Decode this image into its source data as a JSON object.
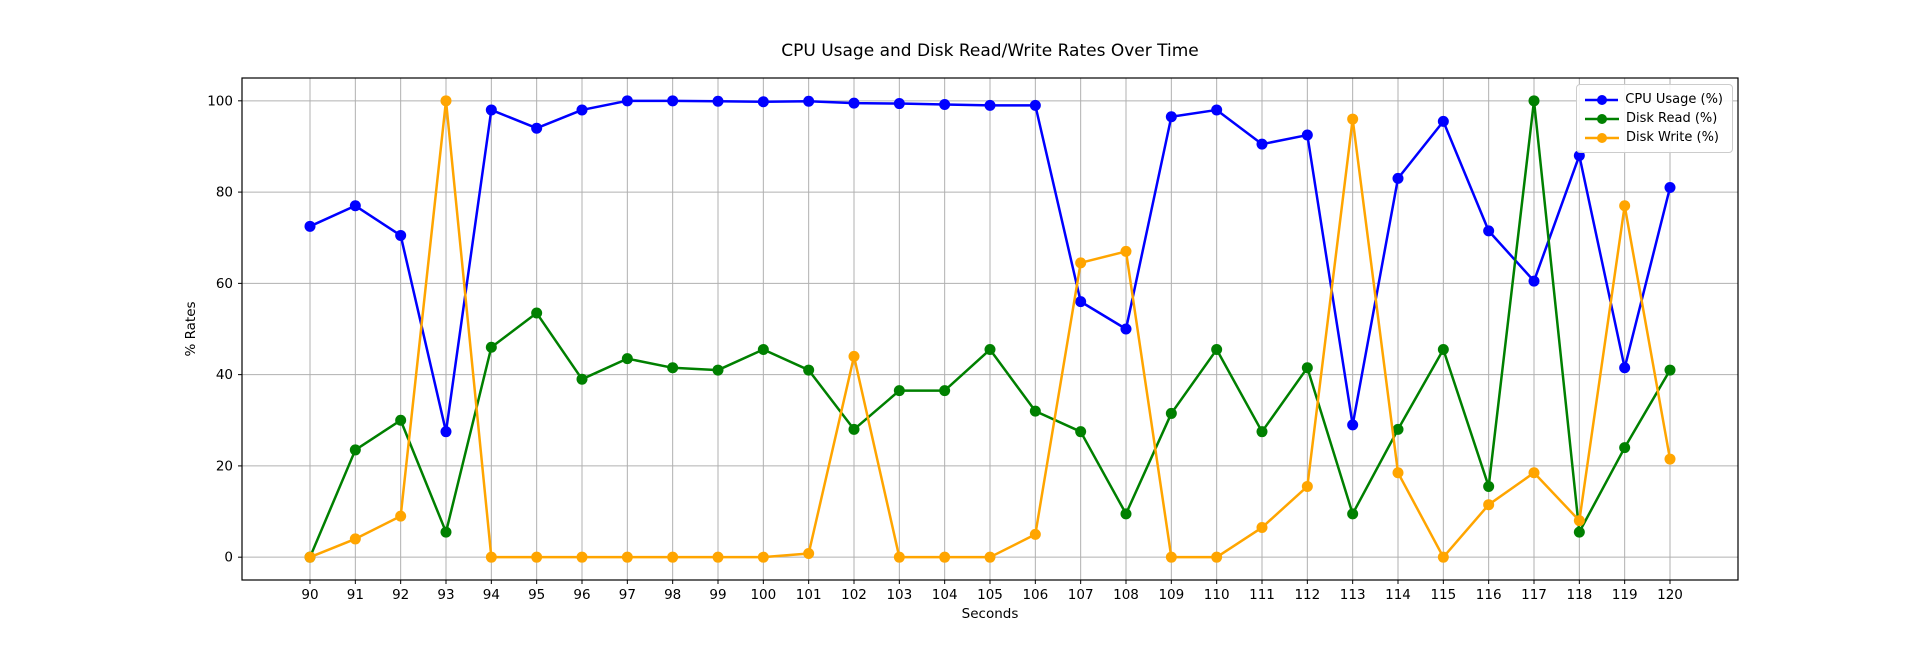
{
  "chart_data": {
    "type": "line",
    "title": "CPU Usage and Disk Read/Write Rates Over Time",
    "xlabel": "Seconds",
    "ylabel": "% Rates",
    "x": [
      90,
      91,
      92,
      93,
      94,
      95,
      96,
      97,
      98,
      99,
      100,
      101,
      102,
      103,
      104,
      105,
      106,
      107,
      108,
      109,
      110,
      111,
      112,
      113,
      114,
      115,
      116,
      117,
      118,
      119,
      120
    ],
    "series": [
      {
        "name": "CPU Usage (%)",
        "color": "#0000ff",
        "marker": "circle",
        "values": [
          72.5,
          77,
          70.5,
          27.5,
          98,
          94,
          98,
          100,
          100,
          99.9,
          99.8,
          99.9,
          99.5,
          99.4,
          99.2,
          99,
          99,
          56,
          50,
          96.5,
          98,
          90.5,
          92.5,
          29,
          83,
          95.5,
          71.5,
          60.5,
          88,
          41.5,
          81
        ]
      },
      {
        "name": "Disk Read (%)",
        "color": "#008000",
        "marker": "circle",
        "values": [
          0,
          23.5,
          30,
          5.5,
          46,
          53.5,
          39,
          43.5,
          41.5,
          41,
          45.5,
          41,
          28,
          36.5,
          36.5,
          45.5,
          32,
          27.5,
          9.5,
          31.5,
          45.5,
          27.5,
          41.5,
          9.5,
          28,
          45.5,
          15.5,
          100,
          5.5,
          24,
          41
        ]
      },
      {
        "name": "Disk Write (%)",
        "color": "#ffa500",
        "marker": "circle",
        "values": [
          0,
          4,
          9,
          100,
          0,
          0,
          0,
          0,
          0,
          0,
          0,
          0.8,
          44,
          0,
          0,
          0,
          5,
          64.5,
          67,
          0,
          0,
          6.5,
          15.5,
          96,
          18.5,
          0,
          11.5,
          18.5,
          8,
          77,
          21.5
        ]
      }
    ],
    "xticks": [
      90,
      91,
      92,
      93,
      94,
      95,
      96,
      97,
      98,
      99,
      100,
      101,
      102,
      103,
      104,
      105,
      106,
      107,
      108,
      109,
      110,
      111,
      112,
      113,
      114,
      115,
      116,
      117,
      118,
      119,
      120
    ],
    "yticks": [
      0,
      20,
      40,
      60,
      80,
      100
    ],
    "xlim": [
      88.5,
      121.5
    ],
    "ylim": [
      -5,
      105
    ],
    "grid": true,
    "grid_color": "#b0b0b0",
    "spine_color": "#000000",
    "legend_position": "upper right"
  }
}
